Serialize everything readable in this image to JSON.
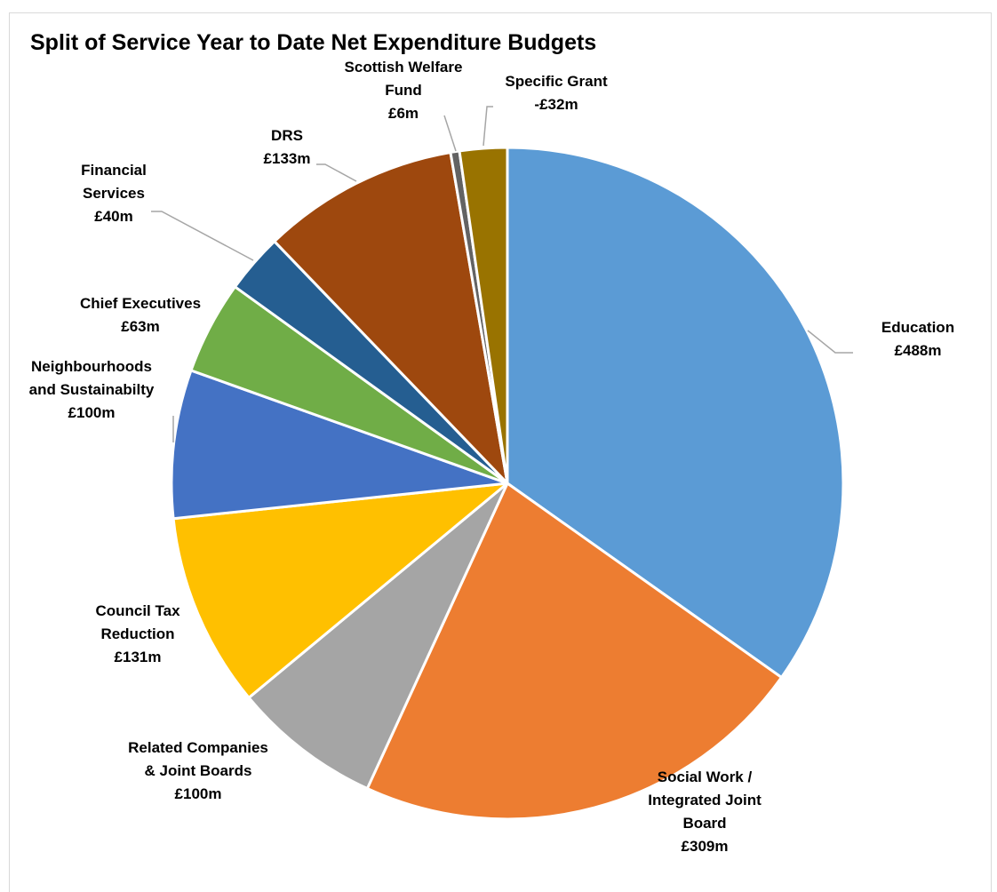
{
  "chart_data": {
    "type": "pie",
    "title": "Split of Service Year to Date Net Expenditure Budgets",
    "slices": [
      {
        "label_lines": [
          "Education",
          "£488m"
        ],
        "value": 488,
        "color": "#5b9bd5"
      },
      {
        "label_lines": [
          "Social Work /",
          "Integrated Joint",
          "Board",
          "£309m"
        ],
        "value": 309,
        "color": "#ed7d31"
      },
      {
        "label_lines": [
          "Related Companies",
          "& Joint Boards",
          "£100m"
        ],
        "value": 100,
        "color": "#a5a5a5"
      },
      {
        "label_lines": [
          "Council Tax",
          "Reduction",
          "£131m"
        ],
        "value": 131,
        "color": "#ffc000"
      },
      {
        "label_lines": [
          "Neighbourhoods",
          "and Sustainabilty",
          "£100m"
        ],
        "value": 100,
        "color": "#4472c4"
      },
      {
        "label_lines": [
          "Chief Executives",
          "£63m"
        ],
        "value": 63,
        "color": "#70ad47"
      },
      {
        "label_lines": [
          "Financial",
          "Services",
          "£40m"
        ],
        "value": 40,
        "color": "#255e91"
      },
      {
        "label_lines": [
          "DRS",
          "£133m"
        ],
        "value": 133,
        "color": "#9e480e"
      },
      {
        "label_lines": [
          "Scottish Welfare",
          "Fund",
          "£6m"
        ],
        "value": 6,
        "color": "#636363"
      },
      {
        "label_lines": [
          "Specific Grant",
          "-£32m"
        ],
        "value": -32,
        "color": "#997300"
      }
    ]
  }
}
